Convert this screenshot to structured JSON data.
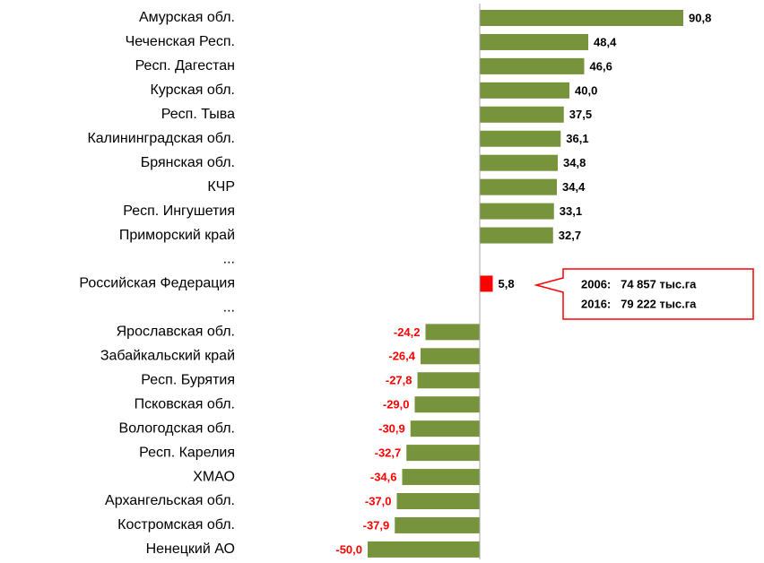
{
  "chart_data": {
    "type": "barh",
    "categories": [
      "Амурская обл.",
      "Чеченская Респ.",
      "Респ. Дагестан",
      "Курская обл.",
      "Респ. Тыва",
      "Калининградская обл.",
      "Брянская обл.",
      "КЧР",
      "Респ. Ингушетия",
      "Приморский край",
      "...",
      "Российская Федерация",
      "...",
      "Ярославская обл.",
      "Забайкальский край",
      "Респ. Бурятия",
      "Псковская обл.",
      "Вологодская обл.",
      "Респ. Карелия",
      "ХМАО",
      "Архангельская обл.",
      "Костромская обл.",
      "Ненецкий АО"
    ],
    "values": [
      90.8,
      48.4,
      46.6,
      40.0,
      37.5,
      36.1,
      34.8,
      34.4,
      33.1,
      32.7,
      null,
      5.8,
      null,
      -24.2,
      -26.4,
      -27.8,
      -29.0,
      -30.9,
      -32.7,
      -34.6,
      -37.0,
      -37.9,
      -50.0
    ],
    "value_labels": [
      "90,8",
      "48,4",
      "46,6",
      "40,0",
      "37,5",
      "36,1",
      "34,8",
      "34,4",
      "33,1",
      "32,7",
      null,
      "5,8",
      null,
      "-24,2",
      "-26,4",
      "-27,8",
      "-29,0",
      "-30,9",
      "-32,7",
      "-34,6",
      "-37,0",
      "-37,9",
      "-50,0"
    ],
    "colors": [
      "#77933c",
      "#77933c",
      "#77933c",
      "#77933c",
      "#77933c",
      "#77933c",
      "#77933c",
      "#77933c",
      "#77933c",
      "#77933c",
      null,
      "#ff0000",
      null,
      "#77933c",
      "#77933c",
      "#77933c",
      "#77933c",
      "#77933c",
      "#77933c",
      "#77933c",
      "#77933c",
      "#77933c",
      "#77933c"
    ],
    "xlim": [
      -60,
      100
    ],
    "annotation": [
      "2006:   74 857 тыс.га",
      "2016:   79 222 тыс.га"
    ]
  }
}
